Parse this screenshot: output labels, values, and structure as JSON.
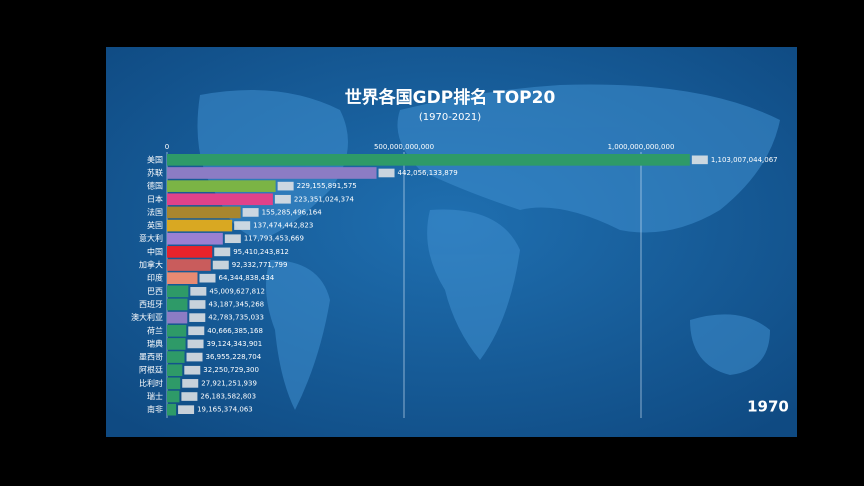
{
  "chart_data": {
    "type": "barh",
    "title": "世界各国GDP排名 TOP20",
    "subtitle": "(1970-2021)",
    "year": "1970",
    "categories": [
      "美国",
      "苏联",
      "德国",
      "日本",
      "法国",
      "英国",
      "意大利",
      "中国",
      "加拿大",
      "印度",
      "巴西",
      "西班牙",
      "澳大利亚",
      "荷兰",
      "瑞典",
      "墨西哥",
      "阿根廷",
      "比利时",
      "瑞士",
      "南非"
    ],
    "values": [
      1103007044067,
      442056133879,
      229155891575,
      223351024374,
      155285496164,
      137474442823,
      117793453669,
      95410243812,
      92332771799,
      64344838434,
      45009627812,
      43187345268,
      42783735033,
      40666385168,
      39124343901,
      36955228704,
      32250729300,
      27921251939,
      26183582803,
      19165374063
    ],
    "value_labels": [
      "1,103,007,044,067",
      "442,056,133,879",
      "229,155,891,575",
      "223,351,024,374",
      "155,285,496,164",
      "137,474,442,823",
      "117,793,453,669",
      "95,410,243,812",
      "92,332,771,799",
      "64,344,838,434",
      "45,009,627,812",
      "43,187,345,268",
      "42,783,735,033",
      "40,666,385,168",
      "39,124,343,901",
      "36,955,228,704",
      "32,250,729,300",
      "27,921,251,939",
      "26,183,582,803",
      "19,165,374,063"
    ],
    "colors": [
      "#2e9a68",
      "#8c7cc4",
      "#7bb445",
      "#e0428a",
      "#a8862e",
      "#d9a822",
      "#9a80d2",
      "#e8232b",
      "#c95c5c",
      "#e88a72",
      "#2e9a68",
      "#2e9a68",
      "#8c7cc4",
      "#2e9a68",
      "#2e9a68",
      "#2e9a68",
      "#2e9a68",
      "#2e9a68",
      "#2e9a68",
      "#2e9a68"
    ],
    "xlim": [
      0,
      1300000000000
    ],
    "xticks": [
      0,
      {
        "value": 500000000000,
        "label": "500,000,000,000"
      },
      {
        "value": 1000000000000,
        "label": "1,000,000,000,000"
      }
    ],
    "grid": true
  }
}
